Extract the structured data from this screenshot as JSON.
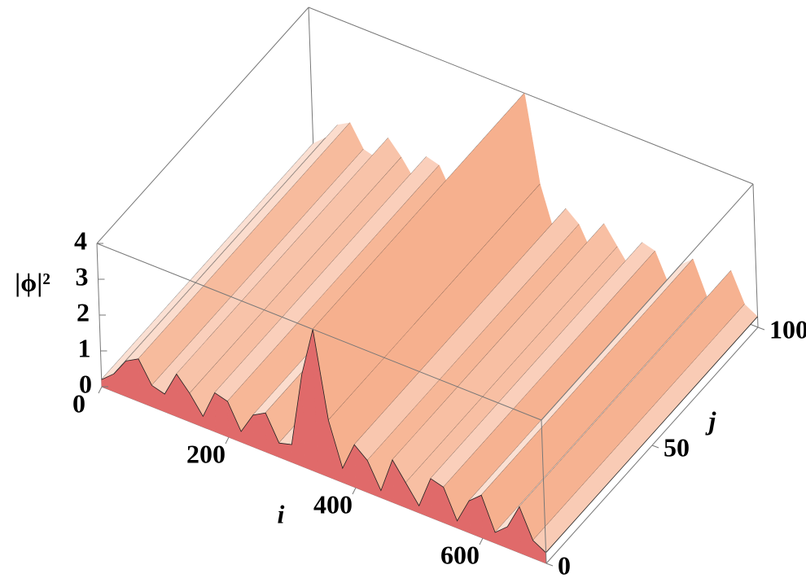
{
  "chart_data": {
    "type": "surface3d",
    "x_label": "i",
    "y_label": "j",
    "z_label": "|ϕ|²",
    "x": [
      0,
      20,
      40,
      60,
      80,
      100,
      120,
      140,
      160,
      180,
      200,
      220,
      240,
      260,
      280,
      300,
      320,
      340,
      360,
      380,
      400,
      420,
      440,
      460,
      480,
      500,
      520,
      540,
      560,
      580,
      600,
      620,
      640,
      660,
      680,
      700
    ],
    "values": [
      0.2,
      0.5,
      1.0,
      1.2,
      0.6,
      0.5,
      1.2,
      0.8,
      0.3,
      1.1,
      1.0,
      0.3,
      0.9,
      1.1,
      0.4,
      0.5,
      2.6,
      4.0,
      1.6,
      0.4,
      1.2,
      0.9,
      0.2,
      1.2,
      0.7,
      0.2,
      1.1,
      1.0,
      0.2,
      0.9,
      1.2,
      0.3,
      0.6,
      1.3,
      0.5,
      0.3
    ],
    "xlim": [
      0,
      700
    ],
    "ylim": [
      0,
      100
    ],
    "zlim": [
      0,
      4
    ],
    "xticks": [
      0,
      200,
      400,
      600
    ],
    "yticks": [
      0,
      50,
      100
    ],
    "zticks": [
      0,
      1,
      2,
      3,
      4
    ],
    "color": "#f6b08e",
    "side_color": "#e06a6a",
    "mesh_color": "#222222",
    "box_color": "#777777"
  }
}
